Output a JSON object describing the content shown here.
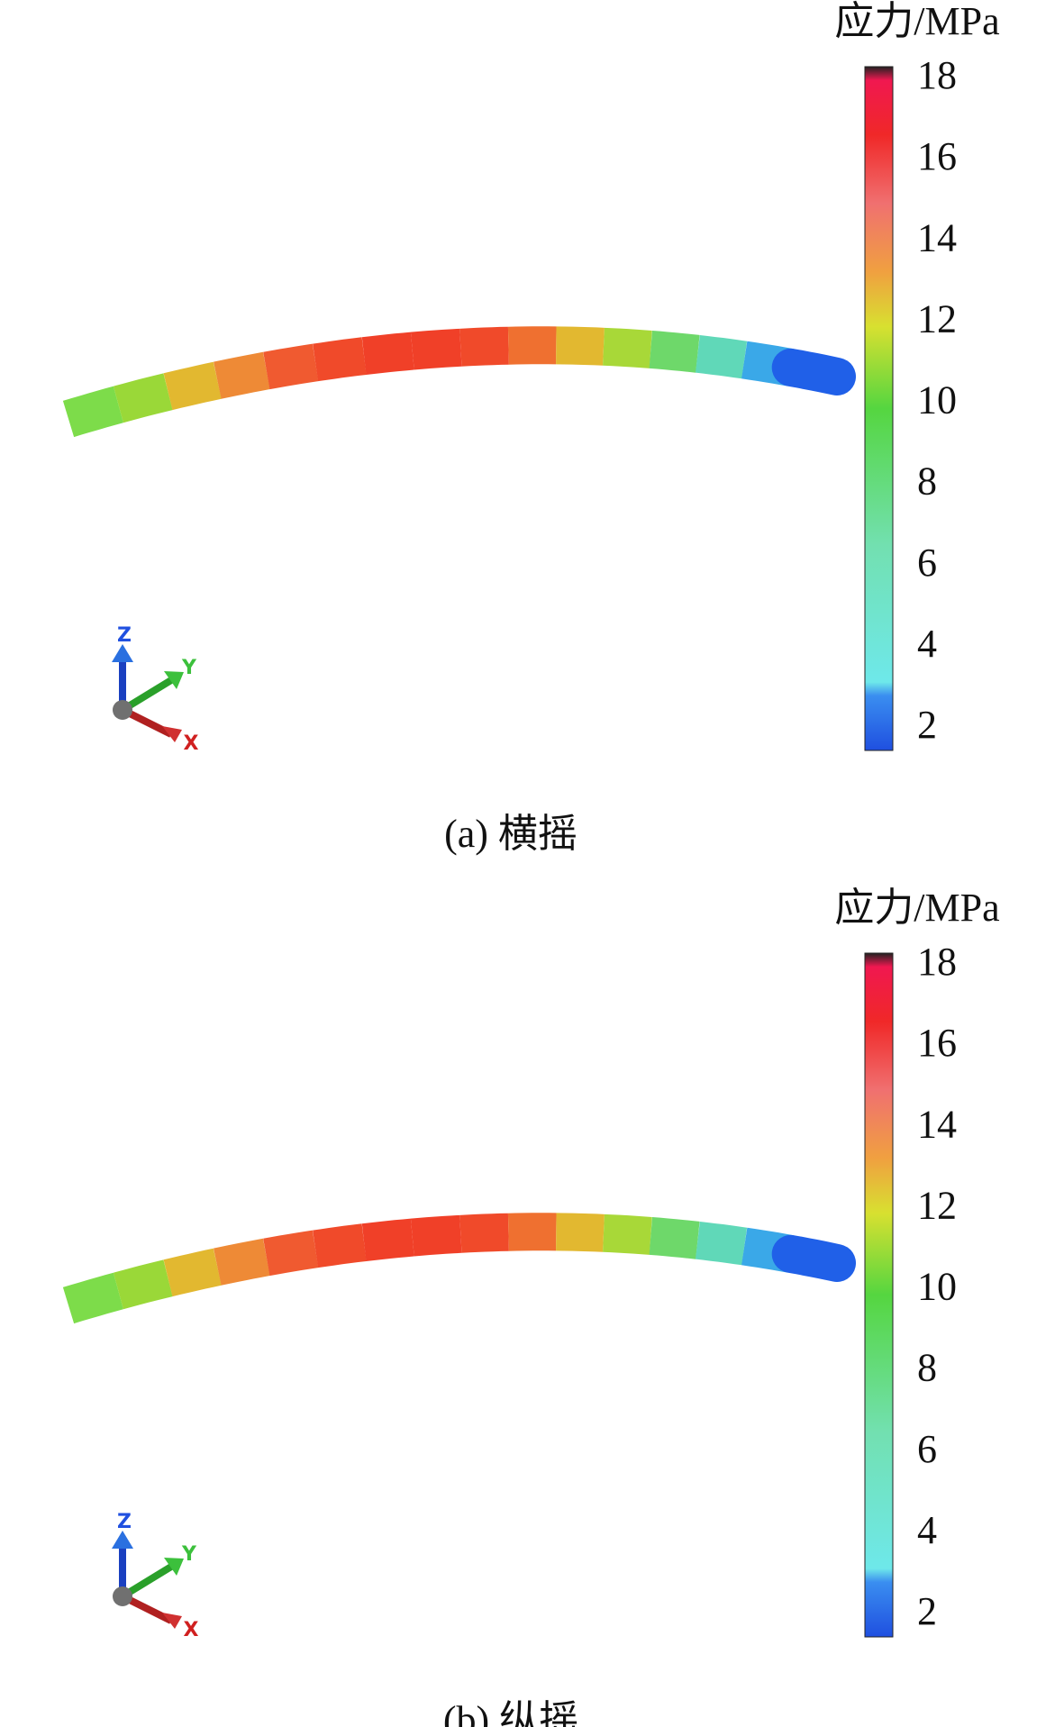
{
  "panels": [
    {
      "colorbar": {
        "title": "应力/MPa",
        "ticks": [
          18,
          16,
          14,
          12,
          10,
          8,
          6,
          4,
          2
        ]
      },
      "triad": {
        "z": "Z",
        "y": "Y",
        "x": "X"
      },
      "caption": "(a) 横摇"
    },
    {
      "colorbar": {
        "title": "应力/MPa",
        "ticks": [
          18,
          16,
          14,
          12,
          10,
          8,
          6,
          4,
          2
        ]
      },
      "triad": {
        "z": "Z",
        "y": "Y",
        "x": "X"
      },
      "caption": "(b) 纵摇"
    }
  ]
}
